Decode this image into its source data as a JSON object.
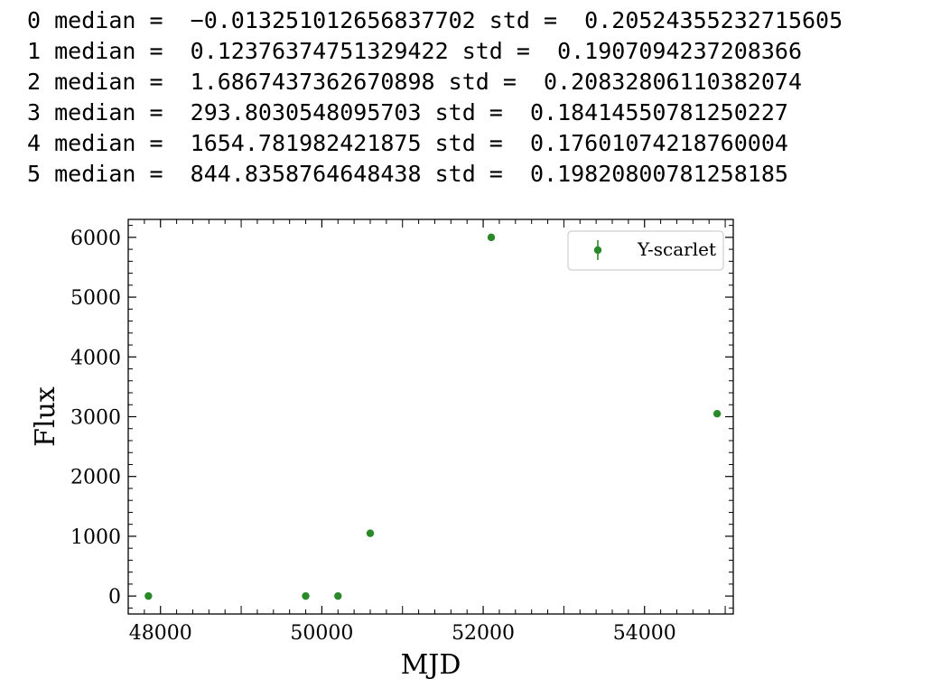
{
  "output_lines": [
    {
      "index": "0",
      "median_label": "median =",
      "median": "−0.013251012656837702",
      "std_label": "std =",
      "std": "0.20524355232715605"
    },
    {
      "index": "1",
      "median_label": "median =",
      "median": "0.12376374751329422",
      "std_label": "std =",
      "std": "0.1907094237208366"
    },
    {
      "index": "2",
      "median_label": "median =",
      "median": "1.6867437362670898",
      "std_label": "std =",
      "std": "0.20832806110382074"
    },
    {
      "index": "3",
      "median_label": "median =",
      "median": "293.8030548095703",
      "std_label": "std =",
      "std": "0.18414550781250227"
    },
    {
      "index": "4",
      "median_label": "median =",
      "median": "1654.781982421875",
      "std_label": "std =",
      "std": "0.17601074218760004"
    },
    {
      "index": "5",
      "median_label": "median =",
      "median": "844.8358764648438",
      "std_label": "std =",
      "std": "0.19820800781258185"
    }
  ],
  "chart_data": {
    "type": "scatter",
    "title": "",
    "xlabel": "MJD",
    "ylabel": "Flux",
    "xlim": [
      47600,
      55100
    ],
    "ylim": [
      -300,
      6300
    ],
    "xticks": [
      48000,
      50000,
      52000,
      54000
    ],
    "xtick_labels": [
      "48000",
      "50000",
      "52000",
      "54000"
    ],
    "yticks": [
      0,
      1000,
      2000,
      3000,
      4000,
      5000,
      6000
    ],
    "ytick_labels": [
      "0",
      "1000",
      "2000",
      "3000",
      "4000",
      "5000",
      "6000"
    ],
    "grid": false,
    "legend_position": "top-right",
    "series": [
      {
        "name": "Y-scarlet",
        "color": "#2a8a2a",
        "x": [
          47850,
          49800,
          50200,
          50600,
          52100,
          54900
        ],
        "y": [
          0,
          0,
          0,
          1050,
          6000,
          3050
        ]
      }
    ]
  }
}
